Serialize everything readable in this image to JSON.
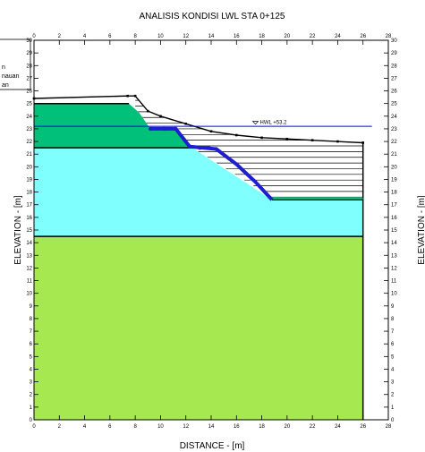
{
  "chart_data": {
    "type": "cross-section",
    "title": "ANALISIS KONDISI LWL STA 0+125",
    "xlabel": "DISTANCE - [m]",
    "ylabel": "ELEVATION - [m]",
    "ylabel_right": "ELEVATION - [m]",
    "xlim": [
      0,
      28
    ],
    "ylim": [
      0,
      30
    ],
    "xticks": [
      0,
      2,
      4,
      6,
      8,
      10,
      12,
      14,
      16,
      18,
      20,
      22,
      24,
      26,
      28
    ],
    "yticks": [
      0,
      1,
      2,
      3,
      4,
      5,
      6,
      7,
      8,
      9,
      10,
      11,
      12,
      13,
      14,
      15,
      16,
      17,
      18,
      19,
      20,
      21,
      22,
      23,
      24,
      25,
      26,
      27,
      28,
      29,
      30
    ],
    "grid": false,
    "legend": {
      "placement": "top-left",
      "entries": [
        "n",
        "nauan",
        "an"
      ]
    },
    "colors": {
      "green": "#00c07a",
      "cyan": "#80ffff",
      "lime": "#a6e84f",
      "hatch": "#000000",
      "water": "#0000ff",
      "slip": "#1e1ed0",
      "frame": "#000000"
    },
    "water_level": {
      "label": "HWL +53.2",
      "y": 23.2,
      "x": [
        0,
        26.7
      ],
      "label_x": 17.5
    },
    "layers": [
      {
        "name": "lime",
        "points": [
          [
            0,
            0
          ],
          [
            26,
            0
          ],
          [
            26,
            14.5
          ],
          [
            0,
            14.5
          ]
        ]
      },
      {
        "name": "cyan",
        "points": [
          [
            0,
            14.5
          ],
          [
            26,
            14.5
          ],
          [
            26,
            17.4
          ],
          [
            18.8,
            17.4
          ],
          [
            12.5,
            21.5
          ],
          [
            0,
            21.5
          ]
        ]
      },
      {
        "name": "green",
        "points": [
          [
            0,
            21.5
          ],
          [
            0,
            25
          ],
          [
            7.5,
            25
          ],
          [
            8.3,
            24.3
          ],
          [
            9.2,
            23
          ],
          [
            11.2,
            23
          ],
          [
            12.5,
            21.5
          ]
        ]
      },
      {
        "name": "green-strip",
        "points": [
          [
            18.8,
            17.4
          ],
          [
            26,
            17.4
          ],
          [
            26,
            17.6
          ],
          [
            18.8,
            17.6
          ]
        ]
      },
      {
        "name": "hatched-fill",
        "points": [
          [
            7.5,
            25
          ],
          [
            7.4,
            25.6
          ],
          [
            8,
            25.6
          ],
          [
            9,
            24.4
          ],
          [
            10,
            24
          ],
          [
            12,
            23.4
          ],
          [
            14,
            22.8
          ],
          [
            16,
            22.5
          ],
          [
            18,
            22.3
          ],
          [
            20,
            22.2
          ],
          [
            22,
            22.1
          ],
          [
            24,
            22.0
          ],
          [
            26,
            21.9
          ],
          [
            26,
            17.6
          ],
          [
            18.8,
            17.6
          ],
          [
            12.5,
            21.5
          ],
          [
            11.2,
            23
          ],
          [
            9.2,
            23
          ],
          [
            8.3,
            24.3
          ]
        ]
      }
    ],
    "hatch_bounds": {
      "x": [
        8,
        26
      ],
      "y": [
        17.6,
        25.6
      ]
    },
    "surface": [
      [
        0,
        25.4
      ],
      [
        7.4,
        25.6
      ],
      [
        8,
        25.6
      ],
      [
        9,
        24.4
      ],
      [
        10,
        24
      ],
      [
        12,
        23.4
      ],
      [
        14,
        22.8
      ],
      [
        16,
        22.5
      ],
      [
        18,
        22.3
      ],
      [
        20,
        22.2
      ],
      [
        22,
        22.1
      ],
      [
        24,
        22.0
      ],
      [
        26,
        21.9
      ]
    ],
    "slip_surface": [
      [
        9.2,
        23
      ],
      [
        11.2,
        23
      ],
      [
        12.3,
        21.6
      ],
      [
        14.4,
        21.4
      ],
      [
        16,
        20.2
      ],
      [
        17.5,
        18.8
      ],
      [
        18.8,
        17.4
      ]
    ],
    "slip_nodes": [
      [
        9.2,
        23
      ],
      [
        10.3,
        23
      ],
      [
        11.2,
        23
      ],
      [
        12.3,
        21.6
      ],
      [
        13.1,
        21.5
      ],
      [
        13.8,
        21.5
      ],
      [
        14.4,
        21.4
      ]
    ],
    "boundary_lines": [
      [
        [
          0,
          14.5
        ],
        [
          26,
          14.5
        ]
      ],
      [
        [
          0,
          21.5
        ],
        [
          12.5,
          21.5
        ]
      ],
      [
        [
          0,
          25
        ],
        [
          7.5,
          25
        ]
      ],
      [
        [
          18.8,
          17.4
        ],
        [
          26,
          17.4
        ]
      ],
      [
        [
          26,
          0
        ],
        [
          26,
          22
        ]
      ]
    ]
  }
}
